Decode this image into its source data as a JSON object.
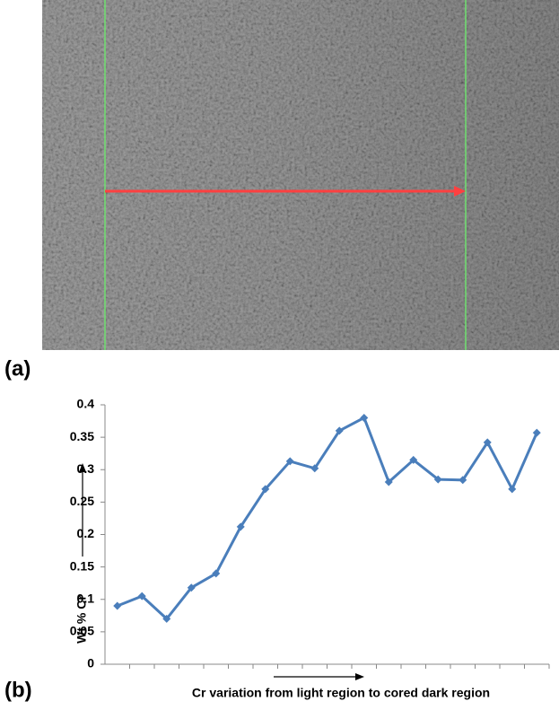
{
  "panel_labels": [
    "(a)",
    "(b)"
  ],
  "chart_data": {
    "type": "line",
    "ylabel": "Wt % Cr",
    "xlabel": "Cr  variation from light region to cored dark region",
    "categories": [
      null,
      null,
      null,
      null,
      null,
      null,
      null,
      null,
      null,
      null,
      null,
      null,
      null,
      null,
      null,
      null,
      null,
      null
    ],
    "series": [
      {
        "color": "#4a7ebb",
        "values": [
          0.09,
          0.105,
          0.07,
          0.118,
          0.14,
          0.212,
          0.27,
          0.313,
          0.302,
          0.36,
          0.38,
          0.281,
          0.315,
          0.285,
          0.284,
          0.342,
          0.27,
          0.357
        ]
      }
    ],
    "ylim": [
      0,
      0.4
    ],
    "yticks": [
      0,
      0.05,
      0.1,
      0.15,
      0.2,
      0.25,
      0.3,
      0.35,
      0.4
    ]
  }
}
